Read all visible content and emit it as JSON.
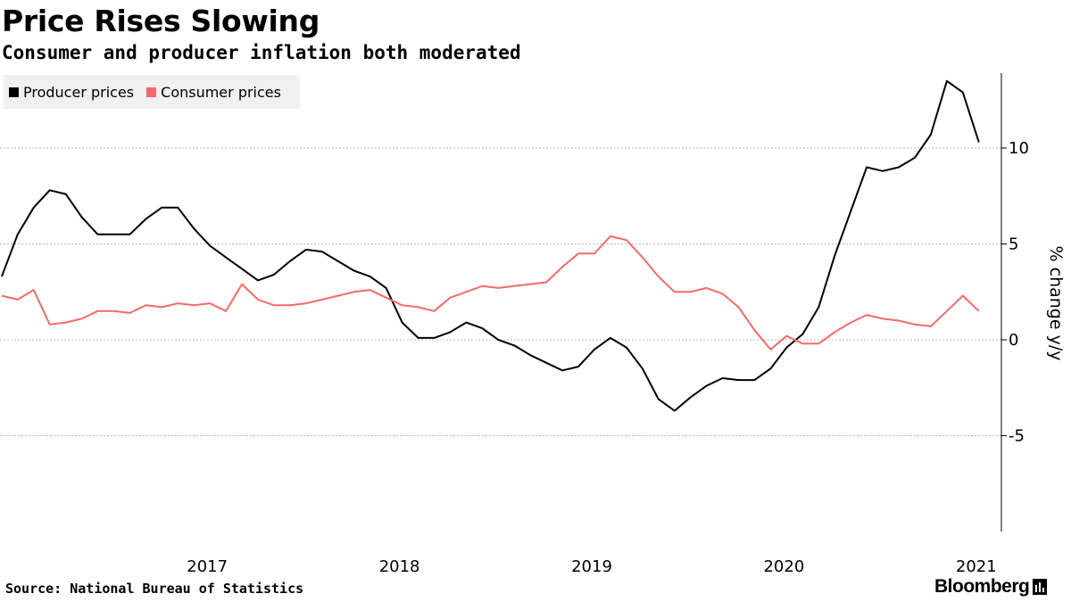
{
  "header": {
    "title": "Price Rises Slowing",
    "subtitle": "Consumer and producer inflation both moderated"
  },
  "footer": {
    "source": "Source: National Bureau of Statistics",
    "brand": "Bloomberg"
  },
  "colors": {
    "producer": "#000000",
    "consumer": "#f26b6b",
    "grid": "#bbbbbb",
    "legend_bg": "#f0f0f0"
  },
  "chart_data": {
    "type": "line",
    "title": "Price Rises Slowing",
    "subtitle": "Consumer and producer inflation both moderated",
    "ylabel": "% change y/y",
    "xlabel": "",
    "ylim": [
      -10,
      14
    ],
    "yticks": [
      -5,
      0,
      5,
      10
    ],
    "ytick_labels": [
      "-5",
      "0",
      "5",
      "10"
    ],
    "x_start": "2016-06",
    "x_end": "2021-07",
    "xtick_labels": [
      "2017",
      "2018",
      "2019",
      "2020",
      "2021"
    ],
    "grid": true,
    "legend_position": "top-left",
    "legend": [
      "Producer prices",
      "Consumer prices"
    ],
    "x": [
      "2016-06",
      "2016-07",
      "2016-08",
      "2016-09",
      "2016-10",
      "2016-11",
      "2016-12",
      "2017-01",
      "2017-02",
      "2017-03",
      "2017-04",
      "2017-05",
      "2017-06",
      "2017-07",
      "2017-08",
      "2017-09",
      "2017-10",
      "2017-11",
      "2017-12",
      "2018-01",
      "2018-02",
      "2018-03",
      "2018-04",
      "2018-05",
      "2018-06",
      "2018-07",
      "2018-08",
      "2018-09",
      "2018-10",
      "2018-11",
      "2018-12",
      "2019-01",
      "2019-02",
      "2019-03",
      "2019-04",
      "2019-05",
      "2019-06",
      "2019-07",
      "2019-08",
      "2019-09",
      "2019-10",
      "2019-11",
      "2019-12",
      "2020-01",
      "2020-02",
      "2020-03",
      "2020-04",
      "2020-05",
      "2020-06",
      "2020-07",
      "2020-08",
      "2020-09",
      "2020-10",
      "2020-11",
      "2020-12",
      "2021-01",
      "2021-02",
      "2021-03",
      "2021-04",
      "2021-05",
      "2021-06",
      "2021-07"
    ],
    "series": [
      {
        "name": "Producer prices",
        "values": [
          3.3,
          5.5,
          6.9,
          7.8,
          7.6,
          6.4,
          5.5,
          5.5,
          5.5,
          6.3,
          6.9,
          6.9,
          5.8,
          4.9,
          4.3,
          3.7,
          3.1,
          3.4,
          4.1,
          4.7,
          4.6,
          4.1,
          3.6,
          3.3,
          2.7,
          0.9,
          0.1,
          0.1,
          0.4,
          0.9,
          0.6,
          0.0,
          -0.3,
          -0.8,
          -1.2,
          -1.6,
          -1.4,
          -0.5,
          0.1,
          -0.4,
          -1.5,
          -3.1,
          -3.7,
          -3.0,
          -2.4,
          -2.0,
          -2.1,
          -2.1,
          -1.5,
          -0.4,
          0.3,
          1.7,
          4.4,
          6.7,
          9.0,
          8.8,
          9.0,
          9.5,
          10.7,
          13.5,
          12.9,
          10.3
        ]
      },
      {
        "name": "Consumer prices",
        "values": [
          2.3,
          2.1,
          2.6,
          0.8,
          0.9,
          1.1,
          1.5,
          1.5,
          1.4,
          1.8,
          1.7,
          1.9,
          1.8,
          1.9,
          1.5,
          2.9,
          2.1,
          1.8,
          1.8,
          1.9,
          2.1,
          2.3,
          2.5,
          2.6,
          2.2,
          1.8,
          1.7,
          1.5,
          2.2,
          2.5,
          2.8,
          2.7,
          2.8,
          2.9,
          3.0,
          3.8,
          4.5,
          4.5,
          5.4,
          5.2,
          4.3,
          3.3,
          2.5,
          2.5,
          2.7,
          2.4,
          1.7,
          0.5,
          -0.5,
          0.2,
          -0.2,
          -0.2,
          0.4,
          0.9,
          1.3,
          1.1,
          1.0,
          0.8,
          0.7,
          1.5,
          2.3,
          1.5
        ]
      }
    ]
  }
}
